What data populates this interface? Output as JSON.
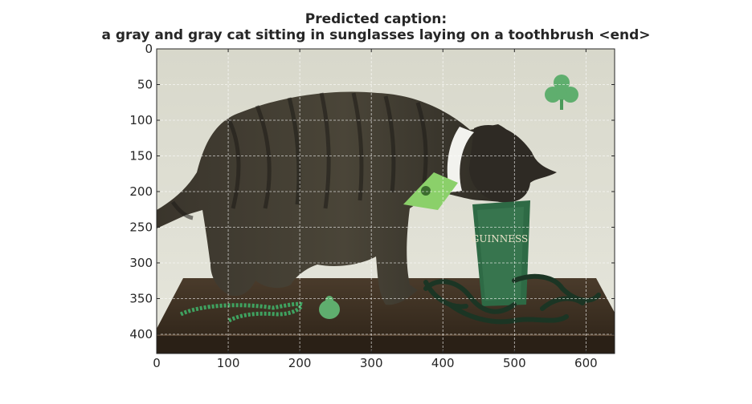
{
  "chart_data": {
    "type": "image",
    "title": "Predicted caption:",
    "subtitle": "a gray and gray cat sitting in sunglasses laying on a toothbrush <end>",
    "x_ticks": [
      0,
      100,
      200,
      300,
      400,
      500,
      600
    ],
    "y_ticks": [
      0,
      50,
      100,
      150,
      200,
      250,
      300,
      350,
      400
    ],
    "xlim": [
      0,
      640
    ],
    "ylim": [
      427,
      0
    ],
    "grid": true,
    "image_size": {
      "width": 640,
      "height": 427
    },
    "image_text": "GUINNESS",
    "colors": {
      "wall": "#dcdccf",
      "table": "#3b2f22",
      "cat": "#34312b",
      "shamrock": "#5fae6e",
      "glass": "#2e6a45",
      "ribbon": "#1b3524"
    }
  }
}
